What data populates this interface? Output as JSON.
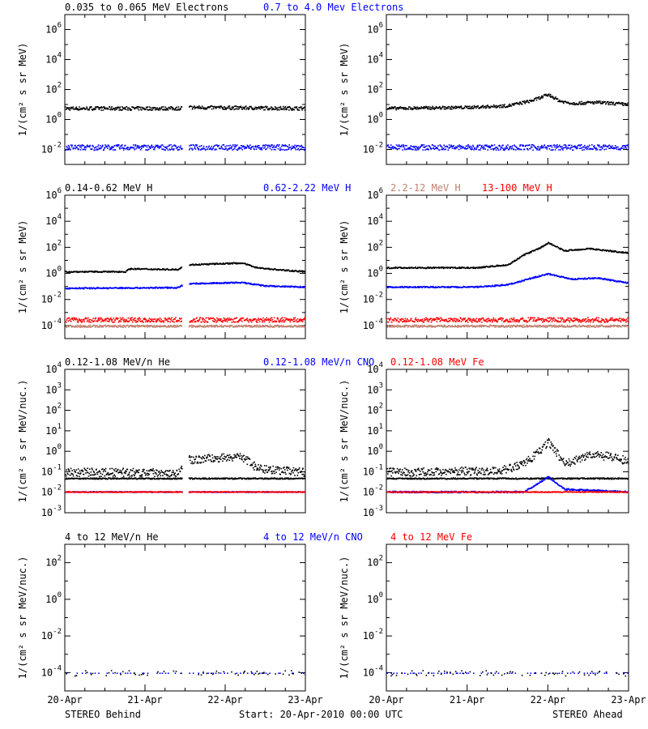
{
  "footer": {
    "left": "STEREO Behind",
    "center": "Start: 20-Apr-2010 00:00 UTC",
    "right": "STEREO Ahead"
  },
  "colors": {
    "black": "#000000",
    "blue": "#0000ff",
    "salmon": "#c08070",
    "red": "#ff0000"
  },
  "x_ticks": [
    "20-Apr",
    "21-Apr",
    "22-Apr",
    "23-Apr"
  ],
  "chart_data": [
    {
      "type": "scatter",
      "spacecraft": "STEREO Behind",
      "row": 0,
      "legend": [
        {
          "text": "0.035 to 0.065 MeV Electrons",
          "color": "#000000"
        },
        {
          "text": "0.7 to 4.0 Mev Electrons",
          "color": "#0000ff"
        }
      ],
      "ylabel": "1/(cm² s sr MeV)",
      "log_y": true,
      "ylim_exp": [
        -3,
        7
      ],
      "ytick_exp": [
        -2,
        0,
        2,
        4,
        6
      ],
      "xlim": [
        "20-Apr-2010",
        "23-Apr-2010"
      ],
      "data_gap": [
        "21-Apr 11:00",
        "21-Apr 13:00"
      ],
      "series": [
        {
          "color": "#000000",
          "levels": [
            [
              0,
              6
            ],
            [
              1.4,
              6
            ],
            [
              1.5,
              7
            ],
            [
              3,
              6
            ]
          ],
          "scatter": 0.12
        },
        {
          "color": "#0000ff",
          "levels": [
            [
              0,
              0.015
            ],
            [
              3,
              0.015
            ]
          ],
          "scatter": 0.18
        }
      ]
    },
    {
      "type": "scatter",
      "spacecraft": "STEREO Ahead",
      "row": 0,
      "legend": [],
      "ylabel": "1/(cm² s sr MeV)",
      "log_y": true,
      "ylim_exp": [
        -3,
        7
      ],
      "ytick_exp": [
        -2,
        0,
        2,
        4,
        6
      ],
      "xlim": [
        "20-Apr-2010",
        "23-Apr-2010"
      ],
      "series": [
        {
          "color": "#000000",
          "levels": [
            [
              0,
              6
            ],
            [
              1,
              7
            ],
            [
              1.5,
              9
            ],
            [
              1.8,
              20
            ],
            [
              2,
              50
            ],
            [
              2.15,
              18
            ],
            [
              2.3,
              13
            ],
            [
              2.6,
              15
            ],
            [
              3,
              11
            ]
          ],
          "scatter": 0.1
        },
        {
          "color": "#0000ff",
          "levels": [
            [
              0,
              0.015
            ],
            [
              3,
              0.015
            ]
          ],
          "scatter": 0.18
        }
      ]
    },
    {
      "type": "scatter",
      "spacecraft": "STEREO Behind",
      "row": 1,
      "legend": [
        {
          "text": "0.14-0.62 MeV H",
          "color": "#000000"
        },
        {
          "text": "0.62-2.22 MeV H",
          "color": "#0000ff"
        },
        {
          "text": "2.2-12 MeV H",
          "color": "#c08070"
        },
        {
          "text": "13-100 MeV H",
          "color": "#ff0000"
        }
      ],
      "ylabel": "1/(cm² s sr MeV)",
      "log_y": true,
      "ylim_exp": [
        -5,
        6
      ],
      "ytick_exp": [
        -4,
        -2,
        0,
        2,
        4,
        6
      ],
      "xlim": [
        "20-Apr-2010",
        "23-Apr-2010"
      ],
      "data_gap": [
        "21-Apr 11:00",
        "21-Apr 13:00"
      ],
      "series": [
        {
          "color": "#000000",
          "levels": [
            [
              0,
              1.5
            ],
            [
              0.75,
              1.5
            ],
            [
              0.8,
              2.5
            ],
            [
              1.4,
              2.2
            ],
            [
              1.5,
              5
            ],
            [
              2.2,
              7
            ],
            [
              2.4,
              3
            ],
            [
              2.7,
              2
            ],
            [
              3,
              1.5
            ]
          ],
          "scatter": 0.05
        },
        {
          "color": "#0000ff",
          "levels": [
            [
              0,
              0.08
            ],
            [
              1.4,
              0.09
            ],
            [
              1.5,
              0.18
            ],
            [
              2.2,
              0.22
            ],
            [
              2.5,
              0.12
            ],
            [
              3,
              0.1
            ]
          ],
          "scatter": 0.05
        },
        {
          "color": "#c08070",
          "levels": [
            [
              0,
              0.0001
            ],
            [
              3,
              0.0001
            ]
          ],
          "scatter": 0.08
        },
        {
          "color": "#ff0000",
          "levels": [
            [
              0,
              0.0003
            ],
            [
              3,
              0.0003
            ]
          ],
          "scatter": 0.18
        }
      ]
    },
    {
      "type": "scatter",
      "spacecraft": "STEREO Ahead",
      "row": 1,
      "legend": [],
      "ylabel": "1/(cm² s sr MeV)",
      "log_y": true,
      "ylim_exp": [
        -5,
        6
      ],
      "ytick_exp": [
        -4,
        -2,
        0,
        2,
        4,
        6
      ],
      "xlim": [
        "20-Apr-2010",
        "23-Apr-2010"
      ],
      "series": [
        {
          "color": "#000000",
          "levels": [
            [
              0,
              3
            ],
            [
              1.1,
              3
            ],
            [
              1.5,
              5
            ],
            [
              1.7,
              30
            ],
            [
              1.9,
              100
            ],
            [
              2.0,
              250
            ],
            [
              2.2,
              60
            ],
            [
              2.5,
              90
            ],
            [
              2.75,
              60
            ],
            [
              3,
              40
            ]
          ],
          "scatter": 0.05
        },
        {
          "color": "#0000ff",
          "levels": [
            [
              0,
              0.1
            ],
            [
              1.1,
              0.1
            ],
            [
              1.5,
              0.15
            ],
            [
              1.8,
              0.5
            ],
            [
              2.0,
              1
            ],
            [
              2.3,
              0.4
            ],
            [
              2.6,
              0.5
            ],
            [
              3,
              0.2
            ]
          ],
          "scatter": 0.05
        },
        {
          "color": "#c08070",
          "levels": [
            [
              0,
              0.0001
            ],
            [
              3,
              0.0001
            ]
          ],
          "scatter": 0.08
        },
        {
          "color": "#ff0000",
          "levels": [
            [
              0,
              0.0003
            ],
            [
              3,
              0.0003
            ]
          ],
          "scatter": 0.18
        }
      ]
    },
    {
      "type": "scatter",
      "spacecraft": "STEREO Behind",
      "row": 2,
      "legend": [
        {
          "text": "0.12-1.08 MeV/n He",
          "color": "#000000"
        },
        {
          "text": "0.12-1.08 MeV/n CNO",
          "color": "#0000ff"
        },
        {
          "text": "0.12-1.08 MeV Fe",
          "color": "#ff0000"
        }
      ],
      "ylabel": "1/(cm² s sr MeV/nuc.)",
      "log_y": true,
      "ylim_exp": [
        -3,
        4
      ],
      "ytick_exp": [
        -3,
        -2,
        -1,
        0,
        1,
        2,
        3,
        4
      ],
      "xlim": [
        "20-Apr-2010",
        "23-Apr-2010"
      ],
      "data_gap": [
        "21-Apr 11:00",
        "21-Apr 13:00"
      ],
      "series": [
        {
          "color": "#000000",
          "levels": [
            [
              0,
              0.05
            ],
            [
              1.4,
              0.05
            ]
          ],
          "scatter": 0.03
        },
        {
          "color": "#000000",
          "levels": [
            [
              0,
              0.1
            ],
            [
              1.4,
              0.1
            ],
            [
              1.5,
              0.4
            ],
            [
              2.2,
              0.6
            ],
            [
              2.4,
              0.15
            ],
            [
              3,
              0.1
            ]
          ],
          "scatter": 0.2
        },
        {
          "color": "#0000ff",
          "levels": [
            [
              0,
              0.011
            ],
            [
              3,
              0.011
            ]
          ],
          "scatter": 0.02
        },
        {
          "color": "#ff0000",
          "levels": [
            [
              0,
              0.011
            ],
            [
              3,
              0.011
            ]
          ],
          "scatter": 0.02
        }
      ]
    },
    {
      "type": "scatter",
      "spacecraft": "STEREO Ahead",
      "row": 2,
      "legend": [],
      "ylabel": "1/(cm² s sr MeV/nuc.)",
      "log_y": true,
      "ylim_exp": [
        -3,
        4
      ],
      "ytick_exp": [
        -3,
        -2,
        -1,
        0,
        1,
        2,
        3,
        4
      ],
      "xlim": [
        "20-Apr-2010",
        "23-Apr-2010"
      ],
      "series": [
        {
          "color": "#000000",
          "levels": [
            [
              0,
              0.05
            ],
            [
              1.5,
              0.05
            ]
          ],
          "scatter": 0.03
        },
        {
          "color": "#000000",
          "levels": [
            [
              0,
              0.1
            ],
            [
              1.4,
              0.12
            ],
            [
              1.7,
              0.25
            ],
            [
              1.9,
              1.2
            ],
            [
              2.0,
              3
            ],
            [
              2.1,
              1
            ],
            [
              2.2,
              0.25
            ],
            [
              2.5,
              0.7
            ],
            [
              2.75,
              0.6
            ],
            [
              3,
              0.35
            ]
          ],
          "scatter": 0.2
        },
        {
          "color": "#0000ff",
          "levels": [
            [
              0,
              0.011
            ],
            [
              1.7,
              0.011
            ],
            [
              2.0,
              0.06
            ],
            [
              2.2,
              0.015
            ],
            [
              3,
              0.011
            ]
          ],
          "scatter": 0.04
        },
        {
          "color": "#ff0000",
          "levels": [
            [
              0,
              0.011
            ],
            [
              3,
              0.011
            ]
          ],
          "scatter": 0.02
        }
      ]
    },
    {
      "type": "scatter",
      "spacecraft": "STEREO Behind",
      "row": 3,
      "legend": [
        {
          "text": "4 to 12 MeV/n He",
          "color": "#000000"
        },
        {
          "text": "4 to 12 MeV/n CNO",
          "color": "#0000ff"
        },
        {
          "text": "4 to 12 MeV Fe",
          "color": "#ff0000"
        }
      ],
      "ylabel": "1/(cm² s sr MeV/nuc.)",
      "log_y": true,
      "ylim_exp": [
        -5,
        3
      ],
      "ytick_exp": [
        -4,
        -2,
        0,
        2
      ],
      "xlim": [
        "20-Apr-2010",
        "23-Apr-2010"
      ],
      "data_gap": [
        "21-Apr 11:00",
        "21-Apr 13:00"
      ],
      "series": [
        {
          "color": "#0000ff",
          "levels": [
            [
              0,
              0.0001
            ],
            [
              3,
              0.0001
            ]
          ],
          "scatter": 0.0,
          "sparse": true
        },
        {
          "color": "#000000",
          "levels": [
            [
              0,
              0.0001
            ],
            [
              3,
              0.0001
            ]
          ],
          "scatter": 0.15,
          "sparse": true
        }
      ]
    },
    {
      "type": "scatter",
      "spacecraft": "STEREO Ahead",
      "row": 3,
      "legend": [],
      "ylabel": "1/(cm² s sr MeV/nuc.)",
      "log_y": true,
      "ylim_exp": [
        -5,
        3
      ],
      "ytick_exp": [
        -4,
        -2,
        0,
        2
      ],
      "xlim": [
        "20-Apr-2010",
        "23-Apr-2010"
      ],
      "series": [
        {
          "color": "#0000ff",
          "levels": [
            [
              0,
              0.0001
            ],
            [
              3,
              0.0001
            ]
          ],
          "scatter": 0.0,
          "sparse": true
        },
        {
          "color": "#000000",
          "levels": [
            [
              0,
              0.0001
            ],
            [
              3,
              0.0001
            ]
          ],
          "scatter": 0.15,
          "sparse": true
        }
      ]
    }
  ]
}
